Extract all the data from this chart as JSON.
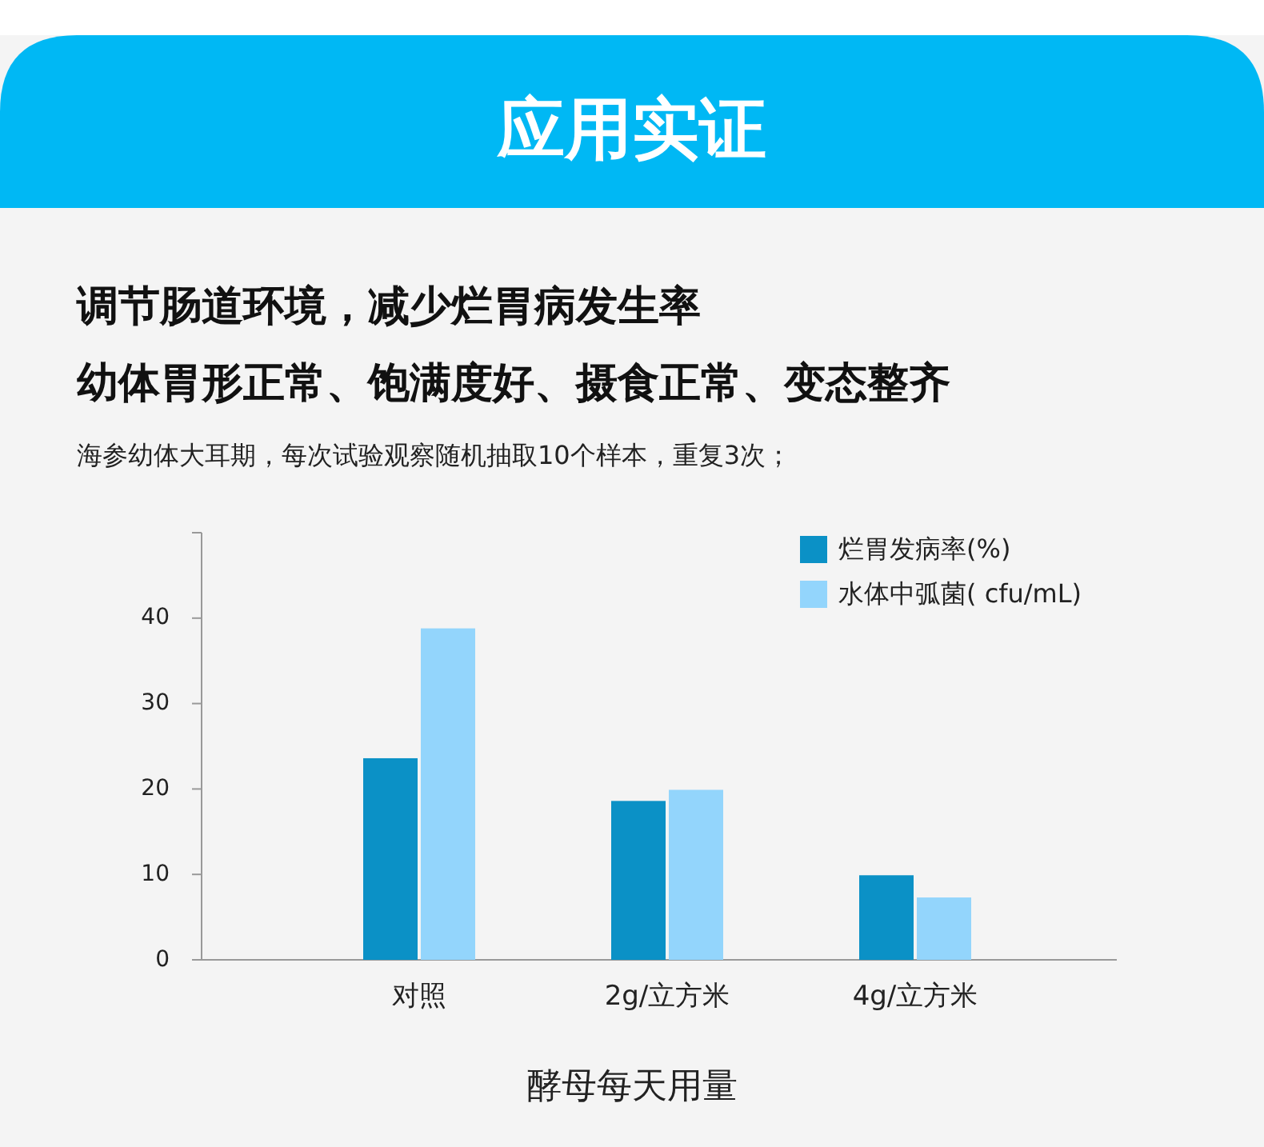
{
  "chart_data": {
    "type": "bar",
    "title": "应用实证",
    "subtitle": "调节肠道环境，减少烂胃病发生率",
    "annotations": [
      "幼体胃形正常、饱满度好、摄食正常、变态整齐",
      "海参幼体大耳期，每次试验观察随机抽取10个样本，重复3次；"
    ],
    "xlabel": "酵母每天用量",
    "categories": [
      "对照",
      "2g/立方米",
      "4g/立方米"
    ],
    "series": [
      {
        "name": "烂胃发病率(%)",
        "color": "#0b91c6",
        "values": [
          23.6,
          18.6,
          9.9
        ]
      },
      {
        "name": "水体中弧菌( cfu/mL)",
        "color": "#93d5fc",
        "values": [
          38.8,
          19.9,
          7.3
        ]
      }
    ],
    "ylim": [
      0,
      50
    ],
    "yticks": [
      0,
      10,
      20,
      30,
      40,
      {
        "value": 50,
        "label": null
      }
    ],
    "legend": "top right"
  }
}
